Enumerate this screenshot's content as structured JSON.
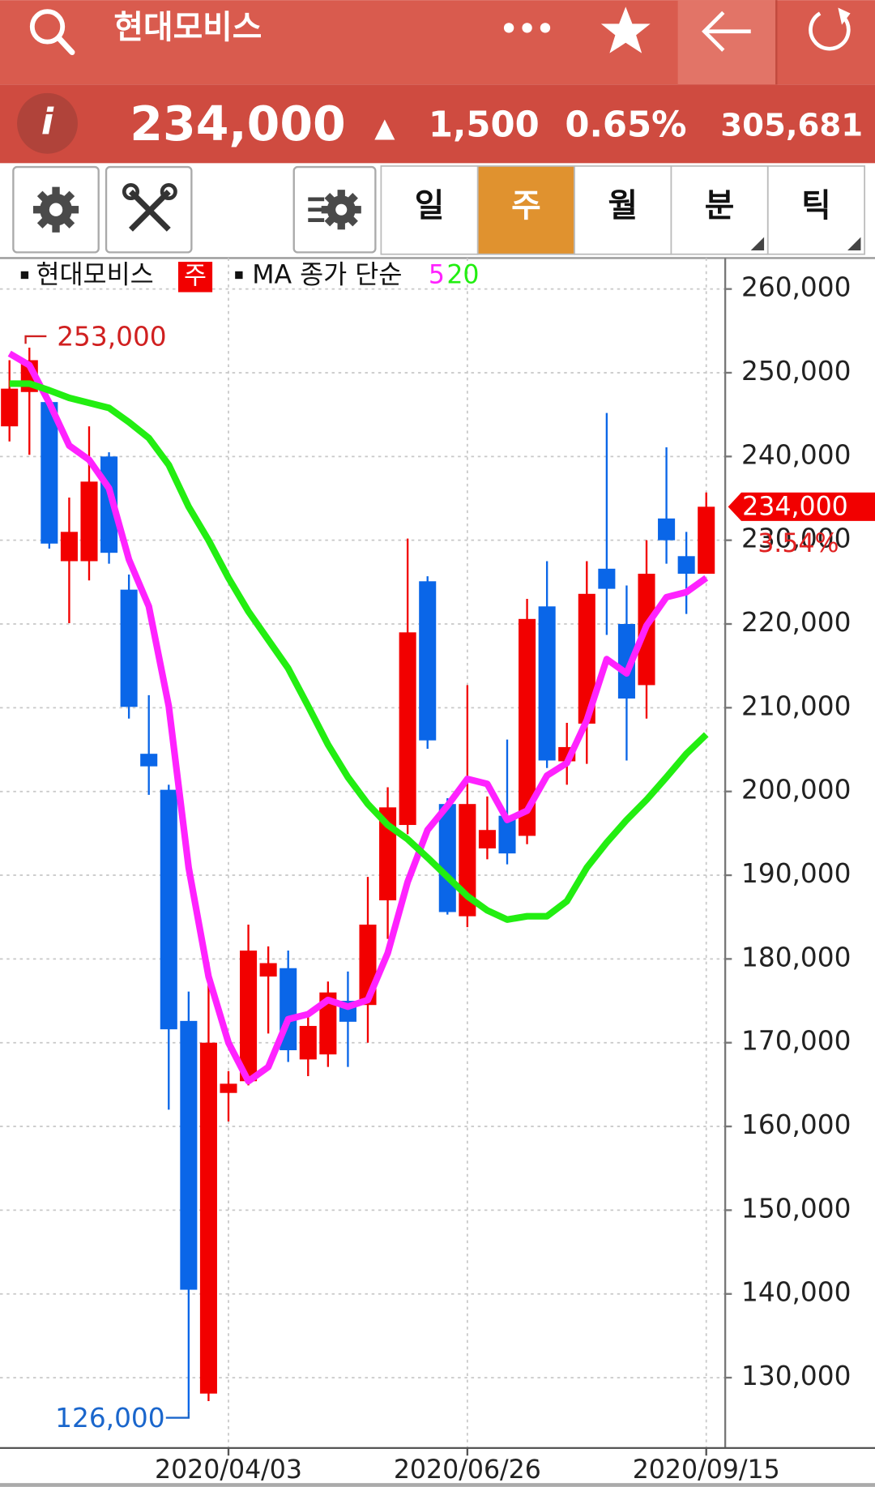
{
  "header": {
    "title": "현대모비스",
    "more": "•••"
  },
  "quote": {
    "info": "i",
    "price": "234,000",
    "change_arrow": "▲",
    "change": "1,500",
    "change_rate": "0.65%",
    "volume": "305,681"
  },
  "tabs": [
    "일",
    "주",
    "월",
    "분",
    "틱"
  ],
  "active_tab": 1,
  "chart_data": {
    "type": "candlestick",
    "legend_badge": "주",
    "ma_label": "MA 종가 단순",
    "categories": [
      null,
      null,
      null,
      null,
      null,
      null,
      null,
      null,
      null,
      null,
      null,
      "2020/04/03",
      null,
      null,
      null,
      null,
      null,
      null,
      null,
      null,
      null,
      null,
      null,
      "2020/06/26",
      null,
      null,
      null,
      null,
      null,
      null,
      null,
      null,
      null,
      null,
      null,
      "2020/09/15"
    ],
    "ohlc": {
      "name": "현대모비스",
      "up_color": "#f20000",
      "down_color": "#0a66e8",
      "open": [
        243600,
        247700,
        246500,
        227500,
        227500,
        240000,
        224100,
        204500,
        200200,
        172600,
        128100,
        164000,
        165400,
        177900,
        178900,
        168000,
        168600,
        175000,
        174500,
        187000,
        196000,
        225100,
        198500,
        185100,
        193200,
        197100,
        194700,
        222100,
        203600,
        208100,
        226600,
        220000,
        212700,
        232600,
        228100,
        226000
      ],
      "high": [
        251500,
        253000,
        247000,
        235100,
        243600,
        240500,
        225900,
        211500,
        200800,
        176100,
        179600,
        166600,
        184100,
        181500,
        181000,
        173400,
        177300,
        178500,
        189800,
        200500,
        230200,
        225700,
        199200,
        212700,
        199400,
        206200,
        223000,
        227500,
        208200,
        227500,
        245200,
        224600,
        230000,
        241100,
        231000,
        235700
      ],
      "low": [
        241800,
        240200,
        229000,
        220100,
        225200,
        227200,
        208700,
        199600,
        162000,
        126000,
        127200,
        160600,
        164900,
        171100,
        167700,
        166000,
        167100,
        167100,
        170000,
        182400,
        194900,
        205100,
        185300,
        183800,
        191900,
        191300,
        193700,
        202800,
        200800,
        203300,
        218700,
        203700,
        208700,
        227200,
        221200,
        226000
      ],
      "close": [
        248100,
        251500,
        229600,
        231000,
        237000,
        228500,
        210100,
        203000,
        171600,
        140500,
        170000,
        165100,
        181000,
        179500,
        169100,
        172000,
        176000,
        172500,
        184100,
        198100,
        219000,
        206100,
        185600,
        198500,
        195400,
        192600,
        220600,
        203700,
        205300,
        223600,
        224200,
        211100,
        226000,
        230000,
        226000,
        234000
      ]
    },
    "series": [
      {
        "name": "5",
        "color": "#ff22ff",
        "values": [
          252300,
          250900,
          246400,
          241300,
          239600,
          236200,
          227700,
          222100,
          210200,
          190900,
          177900,
          170000,
          165400,
          167100,
          172800,
          173400,
          175100,
          174300,
          175100,
          180700,
          189200,
          195400,
          198300,
          201500,
          200900,
          196600,
          197700,
          201900,
          203400,
          208500,
          215800,
          214100,
          219800,
          223200,
          223800,
          225500
        ]
      },
      {
        "name": "20",
        "color": "#22ee11",
        "values": [
          248700,
          248700,
          247900,
          247000,
          246400,
          245800,
          244100,
          242200,
          239000,
          234000,
          230000,
          225500,
          221500,
          218100,
          214700,
          210200,
          205600,
          201700,
          198500,
          196000,
          194300,
          192100,
          189800,
          187500,
          185800,
          184700,
          185100,
          185100,
          186900,
          190900,
          193900,
          196600,
          199000,
          201700,
          204500,
          206800
        ]
      }
    ],
    "ylim": [
      121600,
      263700
    ],
    "yticks": [
      {
        "value": 130000,
        "label": "130,000"
      },
      {
        "value": 140000,
        "label": "140,000"
      },
      {
        "value": 150000,
        "label": "150,000"
      },
      {
        "value": 160000,
        "label": "160,000"
      },
      {
        "value": 170000,
        "label": "170,000"
      },
      {
        "value": 180000,
        "label": "180,000"
      },
      {
        "value": 190000,
        "label": "190,000"
      },
      {
        "value": 200000,
        "label": "200,000"
      },
      {
        "value": 210000,
        "label": "210,000"
      },
      {
        "value": 220000,
        "label": "220,000"
      },
      {
        "value": 230000,
        "label": "230,000"
      },
      {
        "value": 240000,
        "label": "240,000"
      },
      {
        "value": 250000,
        "label": "250,000"
      },
      {
        "value": 260000,
        "label": "260,000"
      }
    ],
    "grid": true,
    "max_label": {
      "value": 253000,
      "label": "253,000"
    },
    "min_label": {
      "value": 126000,
      "label": "126,000"
    },
    "last_price": {
      "value": 234000,
      "label": "234,000"
    },
    "last_change": "3.54%"
  }
}
